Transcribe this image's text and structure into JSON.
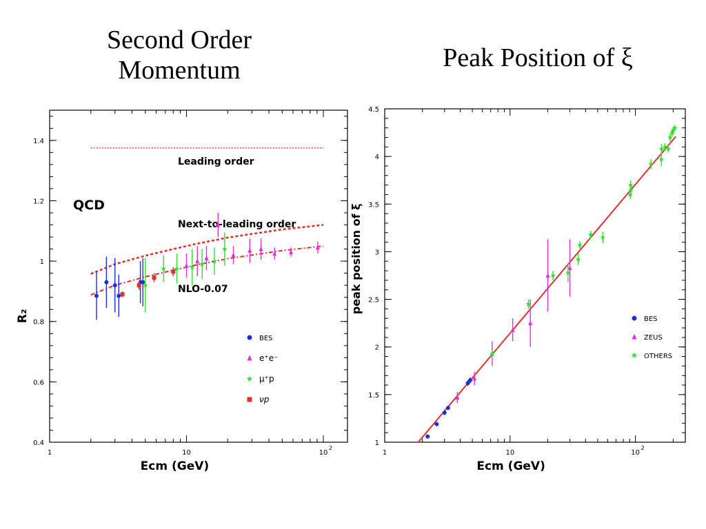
{
  "slide": {
    "left_title_line1": "Second Order",
    "left_title_line2": "Momentum",
    "right_title": "Peak Position of ξ"
  },
  "chart_data": [
    {
      "type": "scatter",
      "xscale": "log",
      "xlim": [
        1,
        150
      ],
      "ylim": [
        0.4,
        1.5
      ],
      "xlabel": "Ecm (GeV)",
      "ylabel": "R₂",
      "xticks": [
        {
          "v": 1,
          "label": "1"
        },
        {
          "v": 10,
          "label": "10"
        },
        {
          "v": 100,
          "label": "10²"
        }
      ],
      "yticks": [
        0.4,
        0.6,
        0.8,
        1,
        1.2,
        1.4
      ],
      "annotations": {
        "qcd": "QCD",
        "leading": "Leading order",
        "nlo": "Next-to-leading order",
        "nlo_shift": "NLO-0.07"
      },
      "curves": [
        {
          "style": "lo",
          "color": "#e0302a",
          "x": [
            2,
            100
          ],
          "y": [
            1.375,
            1.375
          ]
        },
        {
          "style": "nlo",
          "color": "#e0302a",
          "x": [
            2,
            3,
            5,
            8,
            12,
            20,
            30,
            50,
            100
          ],
          "y": [
            0.958,
            0.99,
            1.018,
            1.04,
            1.058,
            1.078,
            1.09,
            1.105,
            1.12
          ]
        },
        {
          "style": "shift",
          "color": "#e0302a",
          "x": [
            2,
            3,
            5,
            8,
            12,
            20,
            30,
            50,
            100
          ],
          "y": [
            0.888,
            0.92,
            0.948,
            0.97,
            0.988,
            1.008,
            1.02,
            1.035,
            1.05
          ]
        }
      ],
      "series": [
        {
          "name": "BES",
          "color": "#1a2fd8",
          "marker": "circle",
          "points": [
            [
              2.2,
              0.885,
              0.08
            ],
            [
              2.6,
              0.93,
              0.085
            ],
            [
              3.0,
              0.92,
              0.09
            ],
            [
              3.2,
              0.885,
              0.07
            ],
            [
              4.6,
              0.93,
              0.07
            ],
            [
              4.8,
              0.93,
              0.08
            ]
          ]
        },
        {
          "name": "e⁺e⁻",
          "color": "#e030e0",
          "marker": "triangle",
          "points": [
            [
              10,
              0.985,
              0.04
            ],
            [
              12,
              1.0,
              0.05
            ],
            [
              14,
              1.01,
              0.04
            ],
            [
              17,
              1.12,
              0.04
            ],
            [
              22,
              1.02,
              0.03
            ],
            [
              29,
              1.035,
              0.04
            ],
            [
              35,
              1.04,
              0.035
            ],
            [
              44,
              1.025,
              0.02
            ],
            [
              58,
              1.03,
              0.015
            ],
            [
              91,
              1.045,
              0.02
            ]
          ]
        },
        {
          "name": "μ⁺p",
          "color": "#33dd33",
          "marker": "star",
          "points": [
            [
              5.0,
              0.92,
              0.09
            ],
            [
              6.8,
              0.975,
              0.045
            ],
            [
              8.5,
              0.975,
              0.05
            ],
            [
              11,
              0.98,
              0.06
            ],
            [
              13,
              0.99,
              0.05
            ],
            [
              16,
              1.0,
              0.045
            ],
            [
              19,
              1.04,
              0.055
            ]
          ]
        },
        {
          "name": "νp",
          "color": "#e0302a",
          "marker": "square",
          "points": [
            [
              3.4,
              0.89,
              0.01
            ],
            [
              4.5,
              0.92,
              0.015
            ],
            [
              5.8,
              0.945,
              0.015
            ],
            [
              8,
              0.965,
              0.015
            ]
          ]
        }
      ]
    },
    {
      "type": "scatter",
      "xscale": "log",
      "xlim": [
        1,
        250
      ],
      "ylim": [
        1,
        4.5
      ],
      "xlabel": "Ecm (GeV)",
      "ylabel": "peak position of ξ",
      "xticks": [
        {
          "v": 1,
          "label": "1"
        },
        {
          "v": 10,
          "label": "10"
        },
        {
          "v": 100,
          "label": "10²"
        }
      ],
      "yticks": [
        1,
        1.5,
        2,
        2.5,
        3,
        3.5,
        4,
        4.5
      ],
      "fit": {
        "color": "#e0302a",
        "x": [
          1.85,
          210
        ],
        "y": [
          1.0,
          4.21
        ]
      },
      "series": [
        {
          "name": "BES",
          "color": "#1a2fd8",
          "marker": "circle",
          "points": [
            [
              2.2,
              1.06,
              0.02
            ],
            [
              2.6,
              1.19,
              0.02
            ],
            [
              3.0,
              1.31,
              0.025
            ],
            [
              3.2,
              1.36,
              0.02
            ],
            [
              4.6,
              1.62,
              0.03
            ],
            [
              4.8,
              1.65,
              0.03
            ]
          ]
        },
        {
          "name": "ZEUS",
          "color": "#e030e0",
          "marker": "triangle",
          "points": [
            [
              3.8,
              1.47,
              0.06
            ],
            [
              5.2,
              1.67,
              0.07
            ],
            [
              7.2,
              1.93,
              0.13
            ],
            [
              10.5,
              2.18,
              0.12
            ],
            [
              14.5,
              2.25,
              0.25
            ],
            [
              20,
              2.75,
              0.38
            ],
            [
              30,
              2.83,
              0.3
            ]
          ]
        },
        {
          "name": "OTHERS",
          "color": "#33dd33",
          "marker": "star",
          "points": [
            [
              7.2,
              1.93,
              0.05
            ],
            [
              14,
              2.45,
              0.05
            ],
            [
              22,
              2.75,
              0.05
            ],
            [
              29,
              2.78,
              0.1
            ],
            [
              35,
              2.92,
              0.06
            ],
            [
              36,
              3.07,
              0.04
            ],
            [
              44,
              3.18,
              0.04
            ],
            [
              55,
              3.15,
              0.06
            ],
            [
              91,
              3.6,
              0.05
            ],
            [
              91.5,
              3.7,
              0.05
            ],
            [
              92,
              3.65,
              0.06
            ],
            [
              133,
              3.92,
              0.05
            ],
            [
              161,
              3.97,
              0.07
            ],
            [
              161.5,
              4.08,
              0.05
            ],
            [
              172,
              4.1,
              0.04
            ],
            [
              183,
              4.08,
              0.04
            ],
            [
              189,
              4.2,
              0.04
            ],
            [
              196,
              4.25,
              0.04
            ],
            [
              200,
              4.27,
              0.04
            ],
            [
              206,
              4.3,
              0.03
            ]
          ]
        }
      ]
    }
  ]
}
